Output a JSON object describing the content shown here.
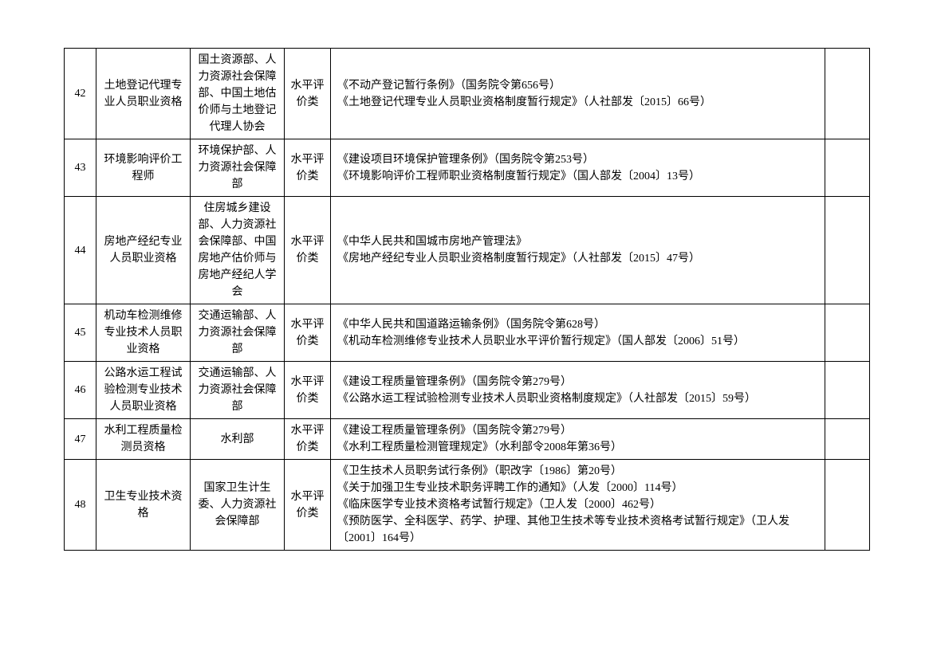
{
  "table": {
    "rows": [
      {
        "num": "42",
        "name": "土地登记代理专业人员职业资格",
        "dept": "国土资源部、人力资源社会保障部、中国土地估价师与土地登记代理人协会",
        "type": "水平评价类",
        "basis": "《不动产登记暂行条例》（国务院令第656号）\n《土地登记代理专业人员职业资格制度暂行规定》（人社部发〔2015〕66号）",
        "spare": ""
      },
      {
        "num": "43",
        "name": "环境影响评价工程师",
        "dept": "环境保护部、人力资源社会保障部",
        "type": "水平评价类",
        "basis": "《建设项目环境保护管理条例》（国务院令第253号）\n《环境影响评价工程师职业资格制度暂行规定》（国人部发〔2004〕13号）",
        "spare": ""
      },
      {
        "num": "44",
        "name": "房地产经纪专业人员职业资格",
        "dept": "住房城乡建设部、人力资源社会保障部、中国房地产估价师与房地产经纪人学会",
        "type": "水平评价类",
        "basis": "《中华人民共和国城市房地产管理法》\n《房地产经纪专业人员职业资格制度暂行规定》（人社部发〔2015〕47号）",
        "spare": ""
      },
      {
        "num": "45",
        "name": "机动车检测维修专业技术人员职业资格",
        "dept": "交通运输部、人力资源社会保障部",
        "type": "水平评价类",
        "basis": "《中华人民共和国道路运输条例》（国务院令第628号）\n《机动车检测维修专业技术人员职业水平评价暂行规定》（国人部发〔2006〕51号）",
        "spare": ""
      },
      {
        "num": "46",
        "name": "公路水运工程试验检测专业技术人员职业资格",
        "dept": "交通运输部、人力资源社会保障部",
        "type": "水平评价类",
        "basis": "《建设工程质量管理条例》（国务院令第279号）\n《公路水运工程试验检测专业技术人员职业资格制度规定》（人社部发〔2015〕59号）",
        "spare": ""
      },
      {
        "num": "47",
        "name": "水利工程质量检测员资格",
        "dept": "水利部",
        "type": "水平评价类",
        "basis": "《建设工程质量管理条例》（国务院令第279号）\n《水利工程质量检测管理规定》（水利部令2008年第36号）",
        "spare": ""
      },
      {
        "num": "48",
        "name": "卫生专业技术资格",
        "dept": "国家卫生计生委、人力资源社会保障部",
        "type": "水平评价类",
        "basis": "《卫生技术人员职务试行条例》（职改字〔1986〕第20号）\n《关于加强卫生专业技术职务评聘工作的通知》（人发〔2000〕114号）\n《临床医学专业技术资格考试暂行规定》（卫人发〔2000〕462号）\n《预防医学、全科医学、药学、护理、其他卫生技术等专业技术资格考试暂行规定》（卫人发〔2001〕164号）",
        "spare": ""
      }
    ]
  }
}
